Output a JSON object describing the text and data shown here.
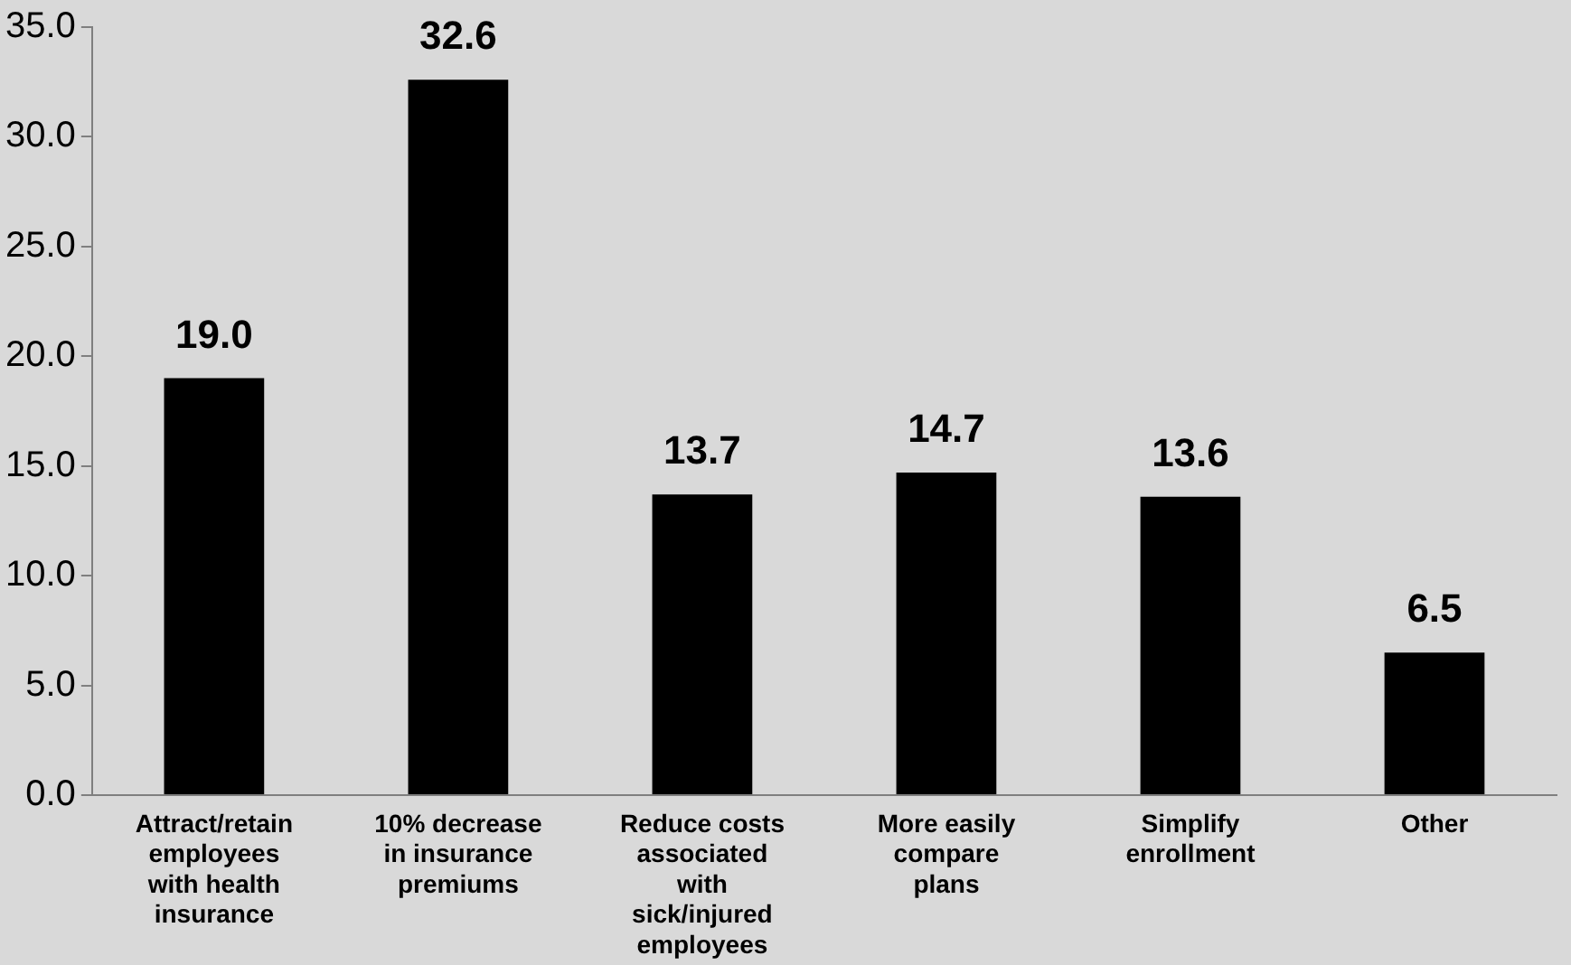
{
  "chart_data": {
    "type": "bar",
    "categories": [
      "Attract/retain\nemployees\nwith health\ninsurance",
      "10% decrease\nin insurance\npremiums",
      "Reduce costs\nassociated\nwith\nsick/injured\nemployees",
      "More easily\ncompare\nplans",
      "Simplify\nenrollment",
      "Other"
    ],
    "values": [
      19.0,
      32.6,
      13.7,
      14.7,
      13.6,
      6.5
    ],
    "color": "#000000",
    "ylim": [
      0,
      35
    ],
    "yticks": [
      {
        "value": 0,
        "label": "0.0"
      },
      {
        "value": 5,
        "label": "5.0"
      },
      {
        "value": 10,
        "label": "10.0"
      },
      {
        "value": 15,
        "label": "15.0"
      },
      {
        "value": 20,
        "label": "20.0"
      },
      {
        "value": 25,
        "label": "25.0"
      },
      {
        "value": 30,
        "label": "30.0"
      },
      {
        "value": 35,
        "label": "35.0"
      }
    ],
    "value_labels": [
      "19.0",
      "32.6",
      "13.7",
      "14.7",
      "13.6",
      "6.5"
    ],
    "grid": false,
    "legend": false
  }
}
